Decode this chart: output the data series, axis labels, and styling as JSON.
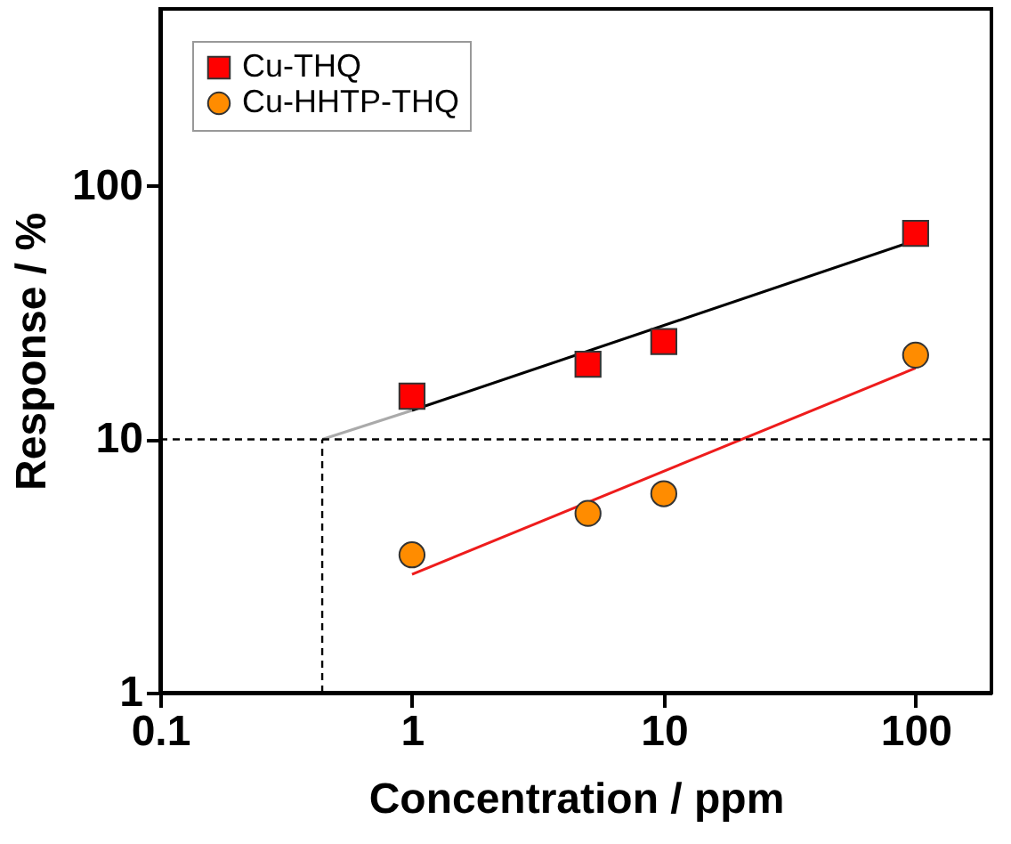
{
  "chart_data": {
    "type": "scatter",
    "xlabel": "Concentration / ppm",
    "ylabel": "Response / %",
    "log": "xy",
    "xlim": [
      0.1,
      200
    ],
    "ylim": [
      1,
      500
    ],
    "xticks": [
      0.1,
      1,
      10,
      100
    ],
    "yticks": [
      1,
      10,
      100
    ],
    "grid": false,
    "legend": "top left",
    "series": [
      {
        "name": "Cu-THQ",
        "marker": "square",
        "color": "#ff0000",
        "x": [
          1,
          5,
          10,
          100
        ],
        "values": [
          14.8,
          19.8,
          24.3,
          65
        ]
      },
      {
        "name": "Cu-HHTP-THQ",
        "marker": "circle",
        "color": "#ff8c00",
        "x": [
          1,
          5,
          10,
          100
        ],
        "values": [
          3.5,
          5.1,
          6.1,
          21.5
        ]
      },
      {
        "type": "line",
        "line_style": "solid",
        "color": "#000000",
        "x": [
          1,
          100
        ],
        "values": [
          13,
          61
        ]
      },
      {
        "type": "line",
        "line_style": "solid",
        "color": "#aaaaaa",
        "x": [
          0.44,
          1
        ],
        "values": [
          10,
          13
        ]
      },
      {
        "type": "line",
        "line_style": "solid",
        "color": "#ee1c1c",
        "x": [
          1,
          100
        ],
        "values": [
          2.93,
          19.1
        ]
      }
    ],
    "ref_lines": [
      {
        "axis": "y",
        "value": 10,
        "line_style": "dashed",
        "color": "#000000"
      },
      {
        "axis": "x",
        "value": 0.44,
        "line_style": "dashed",
        "color": "#000000"
      }
    ]
  }
}
